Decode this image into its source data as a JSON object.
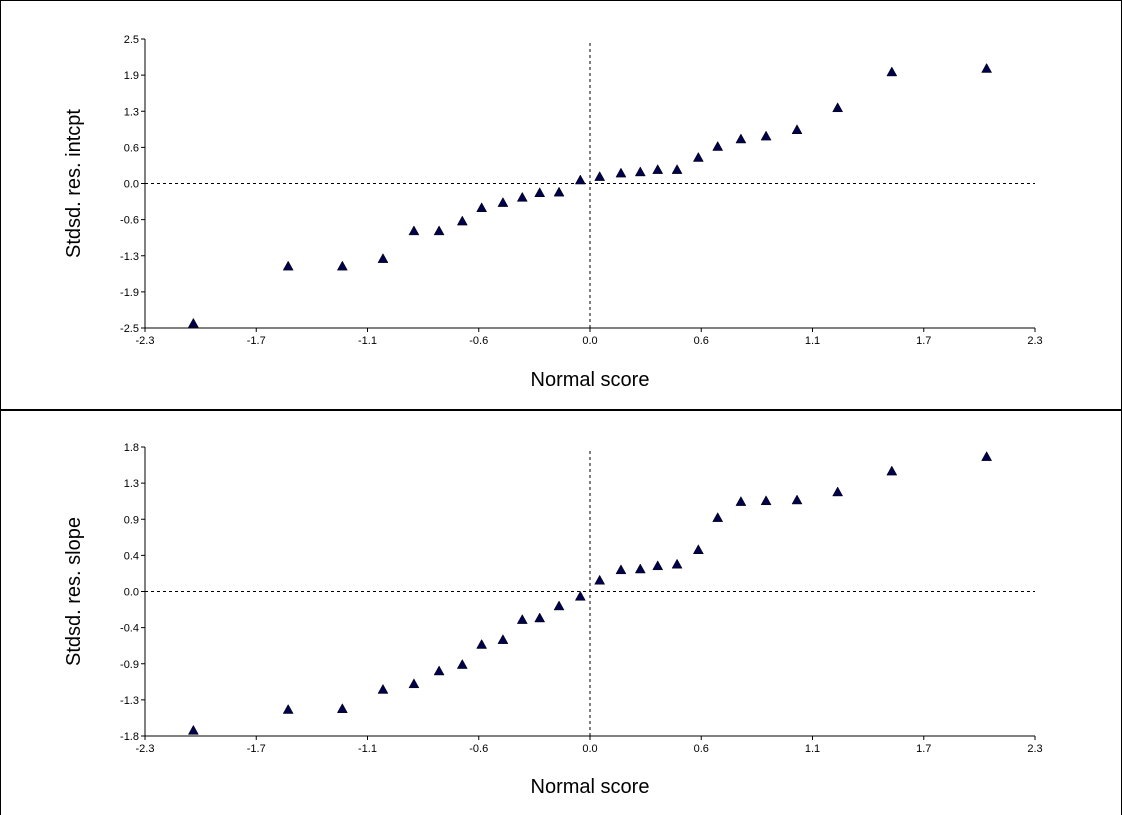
{
  "chart_data": [
    {
      "type": "scatter",
      "xlabel": "Normal score",
      "ylabel": "Stdsd. res. intcpt",
      "x_ticks": [
        "-2.3",
        "-1.7",
        "-1.1",
        "-0.6",
        "0.0",
        "0.6",
        "1.1",
        "1.7",
        "2.3"
      ],
      "y_ticks": [
        "2.5",
        "1.9",
        "1.3",
        "0.6",
        "0.0",
        "-0.6",
        "-1.3",
        "-1.9",
        "-2.5"
      ],
      "xlim": [
        -2.3,
        2.3
      ],
      "ylim": [
        -2.5,
        2.5
      ],
      "reference_lines": {
        "x": 0.0,
        "y": 0.0,
        "style": "dashed"
      },
      "marker": {
        "shape": "triangle",
        "color": "#00004a"
      },
      "points": [
        {
          "x": -2.05,
          "y": -2.42
        },
        {
          "x": -1.56,
          "y": -1.43
        },
        {
          "x": -1.28,
          "y": -1.43
        },
        {
          "x": -1.07,
          "y": -1.3
        },
        {
          "x": -0.91,
          "y": -0.82
        },
        {
          "x": -0.78,
          "y": -0.82
        },
        {
          "x": -0.66,
          "y": -0.65
        },
        {
          "x": -0.56,
          "y": -0.42
        },
        {
          "x": -0.45,
          "y": -0.33
        },
        {
          "x": -0.35,
          "y": -0.24
        },
        {
          "x": -0.26,
          "y": -0.16
        },
        {
          "x": -0.16,
          "y": -0.15
        },
        {
          "x": -0.05,
          "y": 0.06
        },
        {
          "x": 0.05,
          "y": 0.12
        },
        {
          "x": 0.16,
          "y": 0.18
        },
        {
          "x": 0.26,
          "y": 0.2
        },
        {
          "x": 0.35,
          "y": 0.24
        },
        {
          "x": 0.45,
          "y": 0.24
        },
        {
          "x": 0.56,
          "y": 0.45
        },
        {
          "x": 0.66,
          "y": 0.64
        },
        {
          "x": 0.78,
          "y": 0.77
        },
        {
          "x": 0.91,
          "y": 0.82
        },
        {
          "x": 1.07,
          "y": 0.93
        },
        {
          "x": 1.28,
          "y": 1.31
        },
        {
          "x": 1.56,
          "y": 1.93
        },
        {
          "x": 2.05,
          "y": 1.99
        }
      ]
    },
    {
      "type": "scatter",
      "xlabel": "Normal score",
      "ylabel": "Stdsd. res. slope",
      "x_ticks": [
        "-2.3",
        "-1.7",
        "-1.1",
        "-0.6",
        "0.0",
        "0.6",
        "1.1",
        "1.7",
        "2.3"
      ],
      "y_ticks": [
        "1.8",
        "1.3",
        "0.9",
        "0.4",
        "0.0",
        "-0.4",
        "-0.9",
        "-1.3",
        "-1.8"
      ],
      "xlim": [
        -2.3,
        2.3
      ],
      "ylim": [
        -1.8,
        1.8
      ],
      "reference_lines": {
        "x": 0.0,
        "y": 0.0,
        "style": "dashed"
      },
      "marker": {
        "shape": "triangle",
        "color": "#00004a"
      },
      "points": [
        {
          "x": -2.05,
          "y": -1.73
        },
        {
          "x": -1.56,
          "y": -1.47
        },
        {
          "x": -1.28,
          "y": -1.46
        },
        {
          "x": -1.07,
          "y": -1.22
        },
        {
          "x": -0.91,
          "y": -1.15
        },
        {
          "x": -0.78,
          "y": -0.99
        },
        {
          "x": -0.66,
          "y": -0.91
        },
        {
          "x": -0.56,
          "y": -0.66
        },
        {
          "x": -0.45,
          "y": -0.6
        },
        {
          "x": -0.35,
          "y": -0.35
        },
        {
          "x": -0.26,
          "y": -0.33
        },
        {
          "x": -0.16,
          "y": -0.18
        },
        {
          "x": -0.05,
          "y": -0.06
        },
        {
          "x": 0.05,
          "y": 0.14
        },
        {
          "x": 0.16,
          "y": 0.27
        },
        {
          "x": 0.26,
          "y": 0.28
        },
        {
          "x": 0.35,
          "y": 0.32
        },
        {
          "x": 0.45,
          "y": 0.34
        },
        {
          "x": 0.56,
          "y": 0.52
        },
        {
          "x": 0.66,
          "y": 0.92
        },
        {
          "x": 0.78,
          "y": 1.12
        },
        {
          "x": 0.91,
          "y": 1.13
        },
        {
          "x": 1.07,
          "y": 1.14
        },
        {
          "x": 1.28,
          "y": 1.24
        },
        {
          "x": 1.56,
          "y": 1.5
        },
        {
          "x": 2.05,
          "y": 1.68
        }
      ]
    }
  ]
}
